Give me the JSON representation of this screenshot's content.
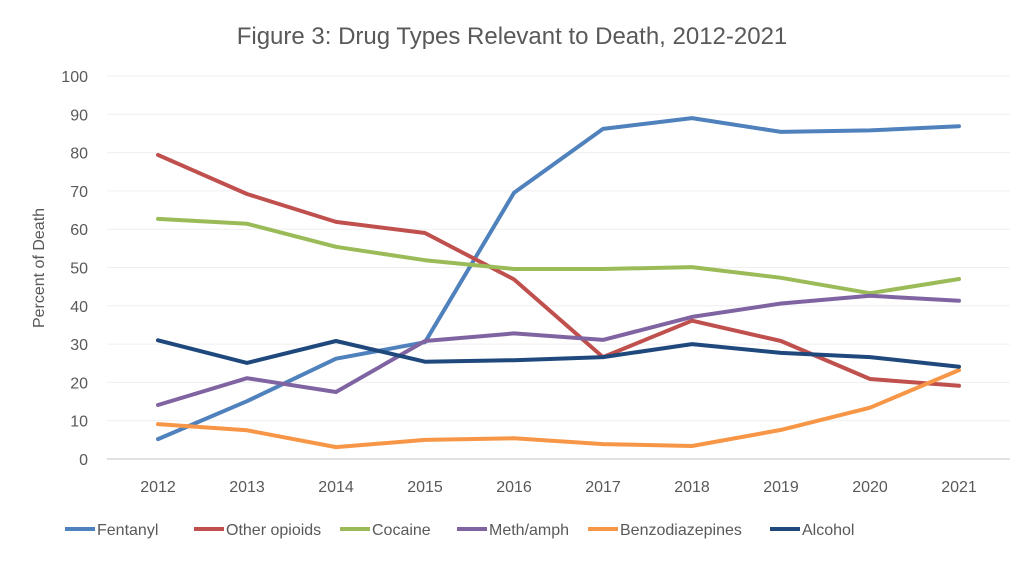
{
  "chart_data": {
    "type": "line",
    "title": "Figure 3: Drug Types Relevant to Death, 2012-2021",
    "xlabel": "",
    "ylabel": "Percent of Death",
    "ylim": [
      0,
      100
    ],
    "yticks": [
      0,
      10,
      20,
      30,
      40,
      50,
      60,
      70,
      80,
      90,
      100
    ],
    "grid": true,
    "legend_position": "bottom",
    "categories": [
      "2012",
      "2013",
      "2014",
      "2015",
      "2016",
      "2017",
      "2018",
      "2019",
      "2020",
      "2021"
    ],
    "series": [
      {
        "name": "Fentanyl",
        "color": "#4F81BD",
        "values": [
          5.2,
          15.1,
          26.2,
          30.5,
          69.5,
          86.2,
          89.0,
          85.4,
          85.8,
          86.9
        ]
      },
      {
        "name": "Other opioids",
        "color": "#C0504D",
        "values": [
          79.4,
          69.2,
          61.9,
          59.0,
          46.9,
          26.6,
          36.1,
          30.8,
          20.9,
          19.1
        ]
      },
      {
        "name": "Cocaine",
        "color": "#9BBB59",
        "values": [
          62.7,
          61.4,
          55.4,
          51.9,
          49.6,
          49.6,
          50.1,
          47.3,
          43.3,
          47.0
        ]
      },
      {
        "name": "Meth/amph",
        "color": "#8064A2",
        "values": [
          14.1,
          21.1,
          17.5,
          30.8,
          32.8,
          31.1,
          37.1,
          40.6,
          42.6,
          41.3
        ]
      },
      {
        "name": "Benzodiazepines",
        "color": "#F79646",
        "values": [
          9.1,
          7.5,
          3.1,
          5.0,
          5.4,
          3.9,
          3.4,
          7.6,
          13.4,
          23.2
        ]
      },
      {
        "name": "Alcohol",
        "color": "#1F497D",
        "values": [
          31.0,
          25.1,
          30.8,
          25.4,
          25.8,
          26.6,
          30.0,
          27.7,
          26.6,
          24.1
        ]
      }
    ]
  }
}
